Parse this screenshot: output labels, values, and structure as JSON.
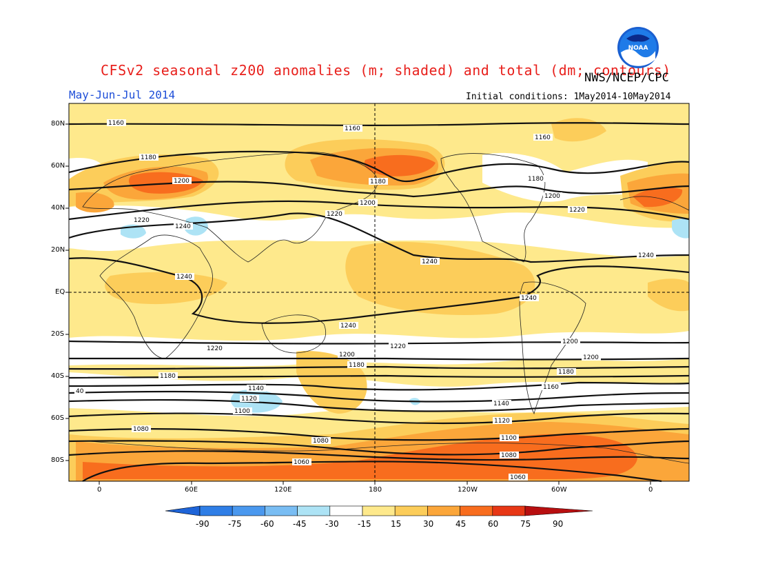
{
  "header": {
    "title": "CFSv2 seasonal z200 anomalies (m; shaded) and total (dm; contours)",
    "agency": "NWS/NCEP/CPC",
    "season": "May-Jun-Jul 2014",
    "init": "Initial conditions: 1May2014-10May2014",
    "logo_text": "NOAA"
  },
  "axes": {
    "lat_labels": [
      "80N",
      "60N",
      "40N",
      "20N",
      "EQ",
      "20S",
      "40S",
      "60S",
      "80S"
    ],
    "lon_labels": [
      "0",
      "60E",
      "120E",
      "180",
      "120W",
      "60W",
      "0"
    ]
  },
  "contour_labels": [
    "1160",
    "1160",
    "1160",
    "1180",
    "1200",
    "1180",
    "1180",
    "1200",
    "1200",
    "1220",
    "1220",
    "1240",
    "1240",
    "1240",
    "1240",
    "1240",
    "1220",
    "1220",
    "1240",
    "1200",
    "1180",
    "1200",
    "1220",
    "1200",
    "1180",
    "1180",
    "1160",
    "1140",
    "1120",
    "1100",
    "40",
    "1140",
    "1120",
    "1080",
    "1080",
    "1100",
    "1060",
    "1080",
    "1060"
  ],
  "colorbar": {
    "labels": [
      "-90",
      "-75",
      "-60",
      "-45",
      "-30",
      "-15",
      "15",
      "30",
      "45",
      "60",
      "75",
      "90"
    ],
    "colors": [
      "#1e64d8",
      "#2f7ee6",
      "#4a98ee",
      "#79bdf3",
      "#ade3f5",
      "#ffffff",
      "#fee98c",
      "#fccd5a",
      "#fba63a",
      "#f86d1e",
      "#e73715",
      "#b80f10"
    ]
  }
}
